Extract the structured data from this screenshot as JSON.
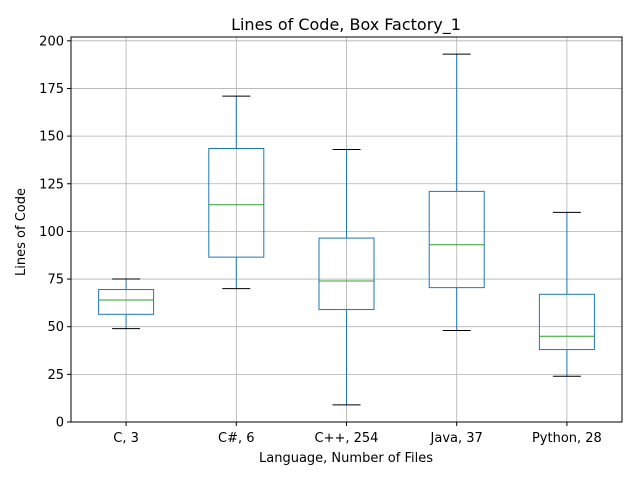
{
  "chart_data": {
    "type": "box",
    "title": "Lines of Code, Box Factory_1",
    "xlabel": "Language, Number of Files",
    "ylabel": "Lines of Code",
    "ylim": [
      0,
      202
    ],
    "yticks": [
      0,
      25,
      50,
      75,
      100,
      125,
      150,
      175,
      200
    ],
    "grid": true,
    "colors": {
      "box": "#1f77b4",
      "median": "#2ca02c",
      "whisker_cap": "#000000",
      "grid": "#b0b0b0"
    },
    "categories": [
      "C, 3",
      "C#, 6",
      "C++, 254",
      "Java, 37",
      "Python, 28"
    ],
    "boxes": [
      {
        "whislo": 49,
        "q1": 56.5,
        "med": 64,
        "q3": 69.5,
        "whishi": 75
      },
      {
        "whislo": 70,
        "q1": 86.5,
        "med": 114,
        "q3": 143.5,
        "whishi": 171
      },
      {
        "whislo": 9,
        "q1": 59,
        "med": 74,
        "q3": 96.5,
        "whishi": 143
      },
      {
        "whislo": 48,
        "q1": 70.5,
        "med": 93,
        "q3": 121,
        "whishi": 193
      },
      {
        "whislo": 24,
        "q1": 38,
        "med": 45,
        "q3": 67,
        "whishi": 110
      }
    ]
  }
}
